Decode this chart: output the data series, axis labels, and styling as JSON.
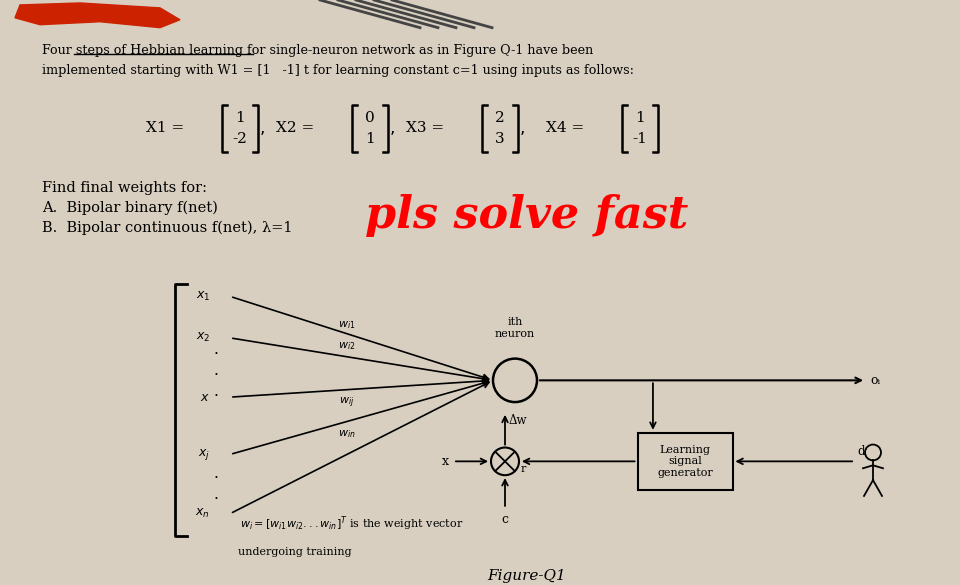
{
  "bg_color": "#d8cfc0",
  "title_line1": "Four steps of Hebbian learning for single-neuron network as in Figure Q-1 have been",
  "title_line2": "implemented starting with W1 = [1   -1] t for learning constant c=1 using inputs as follows:",
  "find_text": "Find final weights for:",
  "optionA": "A.  Bipolar binary f(net)",
  "optionB": "B.  Bipolar continuous f(net), λ=1",
  "overlay_text": "pls solve fast",
  "overlay_color": "#ff0000",
  "diagram_note2": "undergoing training",
  "figure_label": "Figure-Q1",
  "neuron_label": "ith\nneuron",
  "learning_signal": "Learning\nsignal\ngenerator",
  "output_label": "oᵢ",
  "desired_label": "dᵢ",
  "delta_w": "Δw",
  "c_label": "c",
  "r_label": "r",
  "x_label": "x"
}
